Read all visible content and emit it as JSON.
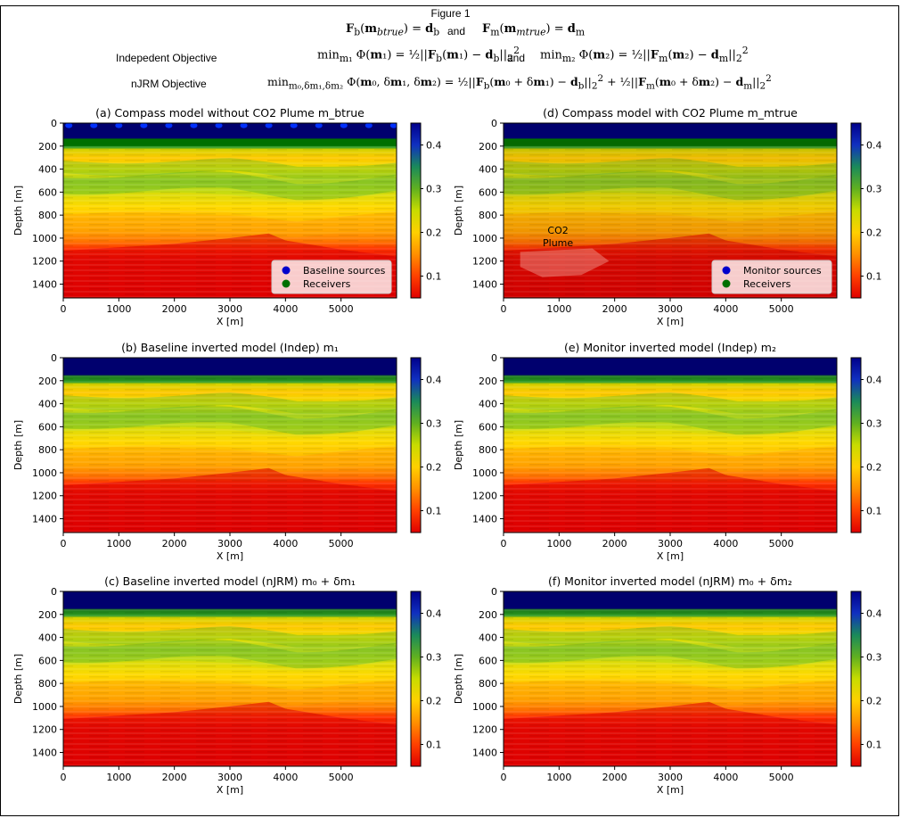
{
  "figure_title": "Figure 1",
  "equations": {
    "row1_left": "F_b(m_btrue) = d_b",
    "row1_and": "and",
    "row1_right": "F_m(m_mtrue) = d_m",
    "indep_label": "Indepedent Objective",
    "indep_left": "min_{m1} Φ(m1) = 1/2 ||F_b(m1) − d_b||₂²",
    "indep_and": "and",
    "indep_right": "min_{m2} Φ(m2) = 1/2 ||F_m(m2) − d_m||₂²",
    "njrm_label": "nJRM Objective",
    "njrm_eq": "min_{m0,δm1,δm2} Φ(m0, δm1, δm2) = 1/2 ||F_b(m0 + δm1) − d_b||₂² + 1/2 ||F_m(m0 + δm2) − d_m||₂²"
  },
  "colors": {
    "water": "#00006e",
    "shallow_green": "#2a9a1a",
    "cmap": [
      "#e00000",
      "#ff4000",
      "#ff9000",
      "#ffd000",
      "#c8dc00",
      "#60b020",
      "#1a8a5a",
      "#1030c0",
      "#00008b"
    ]
  },
  "chart_data": [
    {
      "id": "a",
      "type": "heatmap",
      "title": "(a) Compass model without CO2 Plume  m_btrue",
      "xlabel": "X [m]",
      "ylabel": "Depth [m]",
      "xlim": [
        0,
        6000
      ],
      "ylim": [
        1520,
        0
      ],
      "xticks": [
        "0",
        "1000",
        "2000",
        "3000",
        "4000",
        "5000"
      ],
      "yticks": [
        "0",
        "200",
        "400",
        "600",
        "800",
        "1000",
        "1200",
        "1400"
      ],
      "colorbar": {
        "range": [
          0.05,
          0.45
        ],
        "ticks": [
          "0.1",
          "0.2",
          "0.3",
          "0.4"
        ]
      },
      "plume": false,
      "sources_dots": true,
      "legend": {
        "position": "bottom-right",
        "entries": [
          {
            "label": "Baseline sources",
            "color": "#0000cc"
          },
          {
            "label": "Receivers",
            "color": "#007000"
          }
        ]
      }
    },
    {
      "id": "d",
      "type": "heatmap",
      "title": "(d) Compass model with CO2 Plume  m_mtrue",
      "xlabel": "X [m]",
      "ylabel": "Depth [m]",
      "xlim": [
        0,
        6000
      ],
      "ylim": [
        1520,
        0
      ],
      "xticks": [
        "0",
        "1000",
        "2000",
        "3000",
        "4000",
        "5000"
      ],
      "yticks": [
        "0",
        "200",
        "400",
        "600",
        "800",
        "1000",
        "1200",
        "1400"
      ],
      "colorbar": {
        "range": [
          0.05,
          0.45
        ],
        "ticks": [
          "0.1",
          "0.2",
          "0.3",
          "0.4"
        ]
      },
      "plume": true,
      "plume_label": [
        "CO2",
        "Plume"
      ],
      "sources_dots": false,
      "legend": {
        "position": "bottom-right",
        "entries": [
          {
            "label": "Monitor sources",
            "color": "#0000cc"
          },
          {
            "label": "Receivers",
            "color": "#007000"
          }
        ]
      }
    },
    {
      "id": "b",
      "type": "heatmap",
      "title": "(b) Baseline inverted model (Indep)  m₁",
      "xlabel": "X [m]",
      "ylabel": "Depth [m]",
      "xlim": [
        0,
        6000
      ],
      "ylim": [
        1520,
        0
      ],
      "xticks": [
        "0",
        "1000",
        "2000",
        "3000",
        "4000",
        "5000"
      ],
      "yticks": [
        "0",
        "200",
        "400",
        "600",
        "800",
        "1000",
        "1200",
        "1400"
      ],
      "colorbar": {
        "range": [
          0.05,
          0.45
        ],
        "ticks": [
          "0.1",
          "0.2",
          "0.3",
          "0.4"
        ]
      },
      "plume": false,
      "sources_dots": false
    },
    {
      "id": "e",
      "type": "heatmap",
      "title": "(e) Monitor inverted model (Indep)  m₂",
      "xlabel": "X [m]",
      "ylabel": "Depth [m]",
      "xlim": [
        0,
        6000
      ],
      "ylim": [
        1520,
        0
      ],
      "xticks": [
        "0",
        "1000",
        "2000",
        "3000",
        "4000",
        "5000"
      ],
      "yticks": [
        "0",
        "200",
        "400",
        "600",
        "800",
        "1000",
        "1200",
        "1400"
      ],
      "colorbar": {
        "range": [
          0.05,
          0.45
        ],
        "ticks": [
          "0.1",
          "0.2",
          "0.3",
          "0.4"
        ]
      },
      "plume": false,
      "sources_dots": false
    },
    {
      "id": "c",
      "type": "heatmap",
      "title": "(c) Baseline inverted model (nJRM) m₀ + δm₁",
      "xlabel": "X [m]",
      "ylabel": "Depth [m]",
      "xlim": [
        0,
        6000
      ],
      "ylim": [
        1520,
        0
      ],
      "xticks": [
        "0",
        "1000",
        "2000",
        "3000",
        "4000",
        "5000"
      ],
      "yticks": [
        "0",
        "200",
        "400",
        "600",
        "800",
        "1000",
        "1200",
        "1400"
      ],
      "colorbar": {
        "range": [
          0.05,
          0.45
        ],
        "ticks": [
          "0.1",
          "0.2",
          "0.3",
          "0.4"
        ]
      },
      "plume": false,
      "sources_dots": false
    },
    {
      "id": "f",
      "type": "heatmap",
      "title": "(f) Monitor inverted model (nJRM) m₀ + δm₂",
      "xlabel": "X [m]",
      "ylabel": "Depth [m]",
      "xlim": [
        0,
        6000
      ],
      "ylim": [
        1520,
        0
      ],
      "xticks": [
        "0",
        "1000",
        "2000",
        "3000",
        "4000",
        "5000"
      ],
      "yticks": [
        "0",
        "200",
        "400",
        "600",
        "800",
        "1000",
        "1200",
        "1400"
      ],
      "colorbar": {
        "range": [
          0.05,
          0.45
        ],
        "ticks": [
          "0.1",
          "0.2",
          "0.3",
          "0.4"
        ]
      },
      "plume": false,
      "sources_dots": false
    }
  ]
}
